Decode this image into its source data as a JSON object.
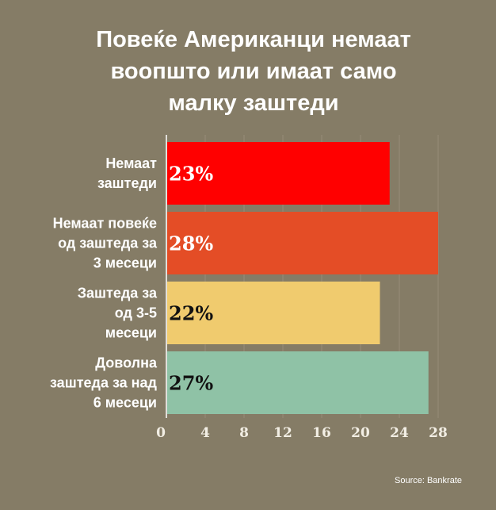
{
  "chart_data": {
    "type": "bar",
    "orientation": "horizontal",
    "title": "Повеќе Американци немаат\nвоопшто или имаат само\nмалку заштеди",
    "categories": [
      "Немаат\nзаштеди",
      "Немаат повеќе\nод заштеда за\n3 месеци",
      "Заштеда за\nод 3-5\nмесеци",
      "Доволна\nзаштеда за над\n6 месеци"
    ],
    "values": [
      23,
      28,
      22,
      27
    ],
    "data_labels": [
      "23%",
      "28%",
      "22%",
      "27%"
    ],
    "bar_colors": [
      "#ff0000",
      "#e44d26",
      "#f0cb6e",
      "#8fc2a6"
    ],
    "label_colors": [
      "#ffffff",
      "#ffffff",
      "#111111",
      "#111111"
    ],
    "xlim": [
      0,
      28
    ],
    "x_ticks": [
      0,
      4,
      8,
      12,
      16,
      20,
      24,
      28
    ],
    "grid": true,
    "source": "Source: Bankrate"
  }
}
